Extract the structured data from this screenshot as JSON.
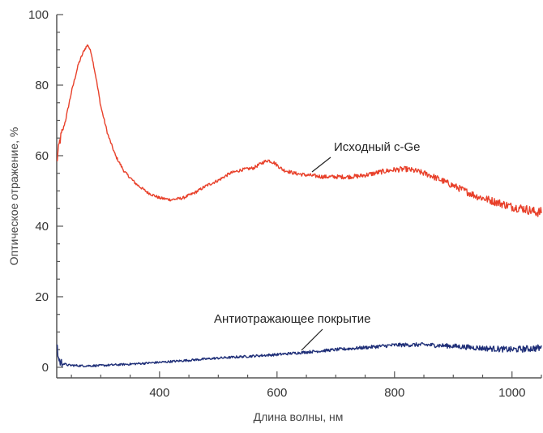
{
  "chart_data": {
    "type": "line",
    "title": "",
    "xlabel": "Длина волны, нм",
    "ylabel": "Оптическое отражение, %",
    "xlim": [
      225,
      1050
    ],
    "ylim": [
      -3,
      100
    ],
    "x_ticks": [
      400,
      600,
      800,
      1000
    ],
    "y_ticks": [
      0,
      20,
      40,
      60,
      80,
      100
    ],
    "grid": false,
    "legend": "none",
    "series": [
      {
        "color": "#e8402a",
        "noise": [
          0.4,
          1.4
        ],
        "points": [
          [
            225,
            58
          ],
          [
            230,
            64
          ],
          [
            240,
            70
          ],
          [
            250,
            78
          ],
          [
            262,
            86
          ],
          [
            272,
            90
          ],
          [
            278,
            91.5
          ],
          [
            284,
            89
          ],
          [
            292,
            82
          ],
          [
            300,
            74
          ],
          [
            312,
            66
          ],
          [
            325,
            60
          ],
          [
            340,
            55.5
          ],
          [
            360,
            52
          ],
          [
            380,
            49.5
          ],
          [
            400,
            48
          ],
          [
            420,
            47.5
          ],
          [
            440,
            48
          ],
          [
            460,
            49.5
          ],
          [
            480,
            51.5
          ],
          [
            500,
            53
          ],
          [
            520,
            55
          ],
          [
            540,
            56
          ],
          [
            560,
            56.5
          ],
          [
            575,
            58
          ],
          [
            585,
            58.7
          ],
          [
            595,
            58
          ],
          [
            610,
            56
          ],
          [
            630,
            55
          ],
          [
            650,
            54.5
          ],
          [
            680,
            54
          ],
          [
            700,
            54
          ],
          [
            720,
            54
          ],
          [
            740,
            54.2
          ],
          [
            760,
            54.8
          ],
          [
            780,
            55.5
          ],
          [
            800,
            56
          ],
          [
            820,
            56.2
          ],
          [
            840,
            55.5
          ],
          [
            860,
            54.5
          ],
          [
            880,
            53
          ],
          [
            900,
            51.5
          ],
          [
            920,
            50
          ],
          [
            940,
            48.5
          ],
          [
            960,
            47.5
          ],
          [
            980,
            46.5
          ],
          [
            1000,
            45.5
          ],
          [
            1020,
            45
          ],
          [
            1040,
            44
          ],
          [
            1050,
            44
          ]
        ]
      },
      {
        "color": "#1f2f78",
        "noise": [
          0.3,
          1.0
        ],
        "points": [
          [
            225,
            7
          ],
          [
            228,
            2.5
          ],
          [
            232,
            1.2
          ],
          [
            245,
            0.6
          ],
          [
            270,
            0.4
          ],
          [
            300,
            0.5
          ],
          [
            350,
            0.9
          ],
          [
            400,
            1.4
          ],
          [
            450,
            2
          ],
          [
            500,
            2.6
          ],
          [
            550,
            3.1
          ],
          [
            600,
            3.6
          ],
          [
            650,
            4.3
          ],
          [
            700,
            5
          ],
          [
            750,
            5.6
          ],
          [
            800,
            6.3
          ],
          [
            850,
            6.4
          ],
          [
            900,
            6
          ],
          [
            950,
            5.4
          ],
          [
            1000,
            5
          ],
          [
            1050,
            5.5
          ]
        ]
      }
    ],
    "annotations": [
      {
        "text": "Исходный c-Ge",
        "x": 660,
        "y": 55
      },
      {
        "text": "Антиотражающее покрытие",
        "x": 640,
        "y": 4.2
      }
    ]
  }
}
